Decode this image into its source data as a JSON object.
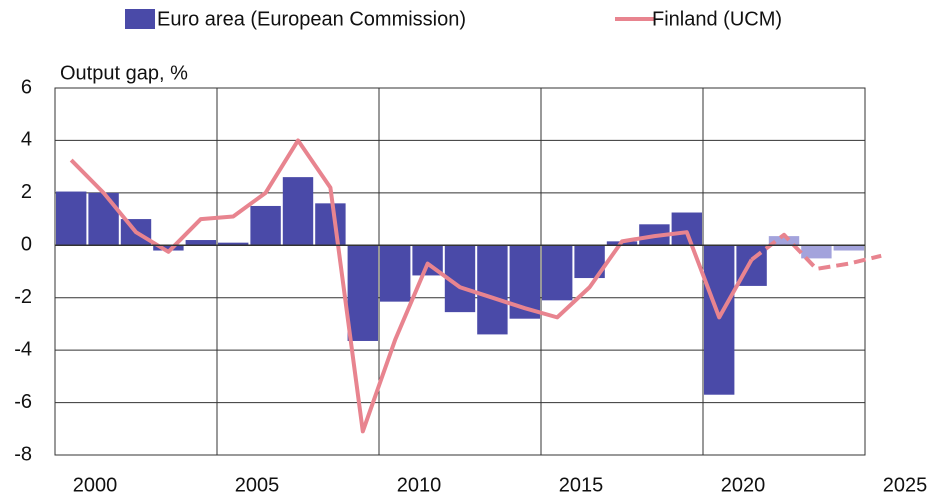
{
  "chart_data": {
    "type": "bar_line",
    "y_label": "Output gap, %",
    "categories": [
      2000,
      2001,
      2002,
      2003,
      2004,
      2005,
      2006,
      2007,
      2008,
      2009,
      2010,
      2011,
      2012,
      2013,
      2014,
      2015,
      2016,
      2017,
      2018,
      2019,
      2020,
      2021,
      2022,
      2023,
      2024,
      2025
    ],
    "series": [
      {
        "name": "Euro area (European Commission)",
        "kind": "bar",
        "color": "#4a4aa8",
        "colors": [
          "#4a4aa8",
          "#4a4aa8",
          "#4a4aa8",
          "#4a4aa8",
          "#4a4aa8",
          "#4a4aa8",
          "#4a4aa8",
          "#4a4aa8",
          "#4a4aa8",
          "#4a4aa8",
          "#4a4aa8",
          "#4a4aa8",
          "#4a4aa8",
          "#4a4aa8",
          "#4a4aa8",
          "#4a4aa8",
          "#4a4aa8",
          "#4a4aa8",
          "#4a4aa8",
          "#4a4aa8",
          "#4a4aa8",
          "#4a4aa8",
          "#a3a3dc",
          "#a3a3dc",
          "#a3a3dc",
          "#a3a3dc"
        ],
        "values": [
          2.05,
          2.0,
          1.0,
          -0.2,
          0.2,
          0.1,
          1.5,
          2.6,
          1.6,
          -3.65,
          -2.15,
          -1.15,
          -2.55,
          -3.4,
          -2.8,
          -2.1,
          -1.25,
          0.15,
          0.8,
          1.25,
          -5.7,
          -1.55,
          0.35,
          -0.5,
          -0.2,
          null
        ]
      },
      {
        "name": "Finland (UCM)",
        "kind": "line",
        "color": "#e8848f",
        "dashed_from": 2022,
        "values": [
          3.25,
          2.0,
          0.5,
          -0.25,
          1.0,
          1.1,
          2.0,
          4.0,
          2.2,
          -7.1,
          -3.6,
          -0.7,
          -1.6,
          -2.0,
          -2.4,
          -2.75,
          -1.6,
          0.15,
          0.35,
          0.5,
          -2.75,
          -0.55,
          0.4,
          -0.9,
          -0.7,
          -0.4
        ]
      }
    ],
    "xticks": [
      2000,
      2005,
      2010,
      2015,
      2020,
      2025
    ],
    "ylim": [
      -8,
      6
    ],
    "yticks": [
      -8,
      -6,
      -4,
      -2,
      0,
      2,
      4,
      6
    ],
    "grid": true
  }
}
